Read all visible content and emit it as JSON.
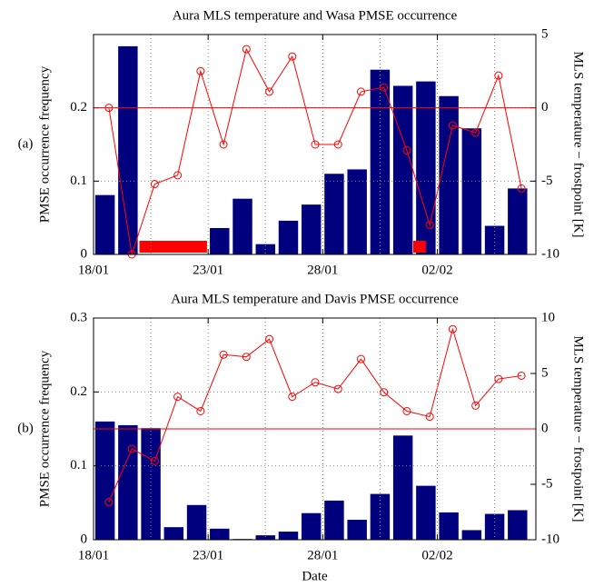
{
  "chart_data": [
    {
      "type": "bar_line",
      "title": "Aura MLS temperature and Wasa PMSE occurrence",
      "panel_label": "(a)",
      "ylabel": "PMSE occurrence frequency",
      "y2label": "MLS temperature − frostpoint [K]",
      "xlim": [
        0,
        19.3
      ],
      "xticks": [
        {
          "value": 0,
          "label": "18/01"
        },
        {
          "value": 5,
          "label": "23/01"
        },
        {
          "value": 10,
          "label": "28/01"
        },
        {
          "value": 15,
          "label": "02/02"
        }
      ],
      "xgrid": [
        2.5,
        7.5,
        12.5,
        17.5
      ],
      "ylim": [
        0,
        0.3
      ],
      "yticks": [
        0,
        0.1,
        0.2
      ],
      "y2lim": [
        -10,
        5
      ],
      "y2ticks": [
        -10,
        -5,
        0,
        5
      ],
      "bar_width": 0.85,
      "bars": {
        "color": "#00007f",
        "x": [
          0.5,
          1.5,
          2.5,
          3.5,
          4.5,
          5.5,
          6.5,
          7.5,
          8.5,
          9.5,
          10.5,
          11.5,
          12.5,
          13.5,
          14.5,
          15.5,
          16.5,
          17.5,
          18.5
        ],
        "values": [
          0.081,
          0.284,
          null,
          null,
          null,
          0.036,
          0.076,
          0.014,
          0.046,
          0.068,
          0.11,
          0.116,
          0.252,
          0.23,
          0.236,
          0.216,
          0.172,
          0.039,
          0.09
        ]
      },
      "line": {
        "color": "#ff0000",
        "axis": "y2",
        "x": [
          0.67,
          1.67,
          2.67,
          3.67,
          4.67,
          5.67,
          6.67,
          7.67,
          8.67,
          9.67,
          10.67,
          11.67,
          12.67,
          13.67,
          14.67,
          15.67,
          16.67,
          17.67,
          18.67
        ],
        "values": [
          0,
          -10,
          -5.2,
          -4.6,
          2.5,
          -2.5,
          4,
          1.1,
          3.5,
          -2.5,
          -2.5,
          1.1,
          1.4,
          -2.9,
          -8,
          -1.2,
          -1.7,
          2.2,
          -5.5
        ]
      },
      "missing_spans": {
        "color": "#ff0000",
        "x": [
          [
            2.0,
            4.95
          ],
          [
            13.95,
            14.5
          ]
        ]
      }
    },
    {
      "type": "bar_line",
      "title": "Aura MLS temperature and Davis PMSE occurrence",
      "panel_label": "(b)",
      "ylabel": "PMSE occurrence frequency",
      "y2label": "MLS temperature − frostpoint [K]",
      "xlabel": "Date",
      "xlim": [
        0,
        19.3
      ],
      "xticks": [
        {
          "value": 0,
          "label": "18/01"
        },
        {
          "value": 5,
          "label": "23/01"
        },
        {
          "value": 10,
          "label": "28/01"
        },
        {
          "value": 15,
          "label": "02/02"
        }
      ],
      "xgrid": [
        2.5,
        7.5,
        12.5,
        17.5
      ],
      "ylim": [
        0,
        0.3
      ],
      "yticks": [
        0,
        0.1,
        0.2,
        0.3
      ],
      "y2lim": [
        -10,
        10
      ],
      "y2ticks": [
        -10,
        -5,
        0,
        5,
        10
      ],
      "bar_width": 0.85,
      "bars": {
        "color": "#00007f",
        "x": [
          0.5,
          1.5,
          2.5,
          3.5,
          4.5,
          5.5,
          6.5,
          7.5,
          8.5,
          9.5,
          10.5,
          11.5,
          12.5,
          13.5,
          14.5,
          15.5,
          16.5,
          17.5,
          18.5
        ],
        "values": [
          0.16,
          0.155,
          0.151,
          0.017,
          0.047,
          0.015,
          0.001,
          0.006,
          0.011,
          0.036,
          0.053,
          0.027,
          0.062,
          0.141,
          0.073,
          0.037,
          0.013,
          0.035,
          0.04
        ]
      },
      "line": {
        "color": "#ff0000",
        "axis": "y2",
        "x": [
          0.67,
          1.67,
          2.67,
          3.67,
          4.67,
          5.67,
          6.67,
          7.67,
          8.67,
          9.67,
          10.67,
          11.67,
          12.67,
          13.67,
          14.67,
          15.67,
          16.67,
          17.67,
          18.67
        ],
        "values": [
          -6.6,
          -1.8,
          -2.9,
          2.9,
          1.6,
          6.7,
          6.5,
          8.1,
          2.9,
          4.2,
          3.6,
          6.3,
          3.3,
          1.6,
          1.1,
          9,
          2.1,
          4.5,
          4.8
        ]
      }
    }
  ]
}
